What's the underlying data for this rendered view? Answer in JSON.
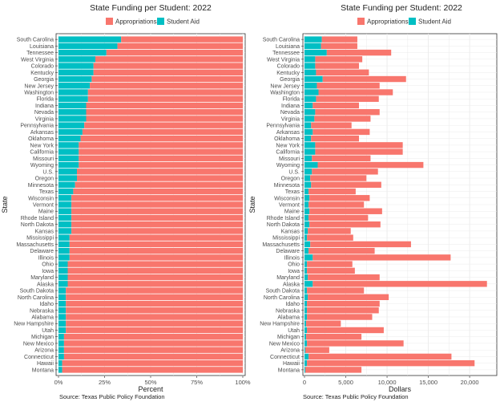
{
  "colors": {
    "appropriations": "#F8766D",
    "student_aid": "#00BFC4",
    "panel_bg": "#FFFFFF",
    "grid": "#EBEBEB",
    "border": "#333333"
  },
  "legend": {
    "appropriations": "Appropriations",
    "student_aid": "Student Aid"
  },
  "chart_data": [
    {
      "type": "bar",
      "orientation": "horizontal",
      "stacked": true,
      "title": "State Funding per Student: 2022",
      "xlabel": "Percent",
      "ylabel": "State",
      "source": "Source: Texas Public Policy Foundation",
      "xlim": [
        0,
        1
      ],
      "xticks": [
        0,
        0.25,
        0.5,
        0.75,
        1.0
      ],
      "xtick_labels": [
        "0%",
        "25%",
        "50%",
        "75%",
        "100%"
      ],
      "grid": true,
      "legend_position": "top",
      "categories": [
        "South Carolina",
        "Louisiana",
        "Tennessee",
        "West Virginia",
        "Colorado",
        "Kentucky",
        "Georgia",
        "New Jersey",
        "Washington",
        "Florida",
        "Indiana",
        "Nevada",
        "Virginia",
        "Pennsylvania",
        "Arkansas",
        "Oklahoma",
        "New York",
        "California",
        "Missouri",
        "Wyoming",
        "U.S.",
        "Oregon",
        "Minnesota",
        "Texas",
        "Wisconsin",
        "Vermont",
        "Maine",
        "Rhode Island",
        "North Dakota",
        "Kansas",
        "Mississippi",
        "Massachusetts",
        "Delaware",
        "Illinois",
        "Ohio",
        "Iowa",
        "Maryland",
        "Alaska",
        "South Dakota",
        "North Carolina",
        "Idaho",
        "Nebraska",
        "Alabama",
        "New Hampshire",
        "Utah",
        "Michigan",
        "New Mexico",
        "Arizona",
        "Connecticut",
        "Hawaii",
        "Montana"
      ],
      "series": [
        {
          "name": "Student Aid",
          "values": [
            0.34,
            0.32,
            0.26,
            0.2,
            0.19,
            0.19,
            0.18,
            0.17,
            0.16,
            0.16,
            0.15,
            0.15,
            0.15,
            0.14,
            0.13,
            0.12,
            0.11,
            0.11,
            0.11,
            0.11,
            0.1,
            0.1,
            0.09,
            0.08,
            0.07,
            0.07,
            0.07,
            0.07,
            0.07,
            0.07,
            0.06,
            0.06,
            0.06,
            0.06,
            0.05,
            0.05,
            0.05,
            0.05,
            0.04,
            0.04,
            0.04,
            0.04,
            0.04,
            0.04,
            0.04,
            0.03,
            0.03,
            0.03,
            0.03,
            0.02,
            0.02
          ]
        },
        {
          "name": "Appropriations",
          "values": [
            0.66,
            0.68,
            0.74,
            0.8,
            0.81,
            0.81,
            0.82,
            0.83,
            0.84,
            0.84,
            0.85,
            0.85,
            0.85,
            0.86,
            0.87,
            0.88,
            0.89,
            0.89,
            0.89,
            0.89,
            0.9,
            0.9,
            0.91,
            0.92,
            0.93,
            0.93,
            0.93,
            0.93,
            0.93,
            0.93,
            0.94,
            0.94,
            0.94,
            0.94,
            0.95,
            0.95,
            0.95,
            0.95,
            0.96,
            0.96,
            0.96,
            0.96,
            0.96,
            0.96,
            0.96,
            0.97,
            0.97,
            0.97,
            0.97,
            0.98,
            0.98
          ]
        }
      ]
    },
    {
      "type": "bar",
      "orientation": "horizontal",
      "stacked": true,
      "title": "State Funding per Student: 2022",
      "xlabel": "Dollars",
      "ylabel": "State",
      "source": "Source: Texas Public Policy Foundation",
      "xlim": [
        0,
        23000
      ],
      "xticks": [
        0,
        5000,
        10000,
        15000,
        20000
      ],
      "xtick_labels": [
        "0",
        "5,000",
        "10,000",
        "15,000",
        "20,000"
      ],
      "grid": true,
      "legend_position": "top",
      "categories": [
        "South Carolina",
        "Louisiana",
        "Tennessee",
        "West Virginia",
        "Colorado",
        "Kentucky",
        "Georgia",
        "New Jersey",
        "Washington",
        "Florida",
        "Indiana",
        "Nevada",
        "Virginia",
        "Pennsylvania",
        "Arkansas",
        "Oklahoma",
        "New York",
        "California",
        "Missouri",
        "Wyoming",
        "U.S.",
        "Oregon",
        "Minnesota",
        "Texas",
        "Wisconsin",
        "Vermont",
        "Maine",
        "Rhode Island",
        "North Dakota",
        "Kansas",
        "Mississippi",
        "Massachusetts",
        "Delaware",
        "Illinois",
        "Ohio",
        "Iowa",
        "Maryland",
        "Alaska",
        "South Dakota",
        "North Carolina",
        "Idaho",
        "Nebraska",
        "Alabama",
        "New Hampshire",
        "Utah",
        "Michigan",
        "New Mexico",
        "Arizona",
        "Connecticut",
        "Hawaii",
        "Montana"
      ],
      "series": [
        {
          "name": "Student Aid",
          "values": [
            2100,
            2000,
            2700,
            1300,
            1300,
            1400,
            2200,
            1500,
            1700,
            1400,
            1000,
            1300,
            1200,
            800,
            1000,
            800,
            1300,
            1300,
            900,
            1600,
            900,
            700,
            800,
            500,
            600,
            500,
            600,
            500,
            600,
            400,
            300,
            700,
            500,
            1000,
            300,
            300,
            400,
            1000,
            300,
            400,
            300,
            300,
            300,
            200,
            300,
            200,
            300,
            100,
            500,
            300,
            100
          ]
        },
        {
          "name": "Appropriations",
          "values": [
            4300,
            4400,
            7800,
            5700,
            5300,
            6400,
            10100,
            7600,
            9000,
            7600,
            5600,
            7800,
            6800,
            4900,
            6900,
            5800,
            10600,
            10600,
            7100,
            12800,
            8000,
            6800,
            8500,
            5700,
            7300,
            6700,
            8800,
            7200,
            8600,
            5200,
            5600,
            12200,
            8000,
            16700,
            5500,
            5800,
            8700,
            21100,
            6900,
            9800,
            8800,
            8700,
            7900,
            4200,
            9300,
            6700,
            11700,
            2900,
            17300,
            20300,
            6800
          ]
        }
      ]
    }
  ]
}
